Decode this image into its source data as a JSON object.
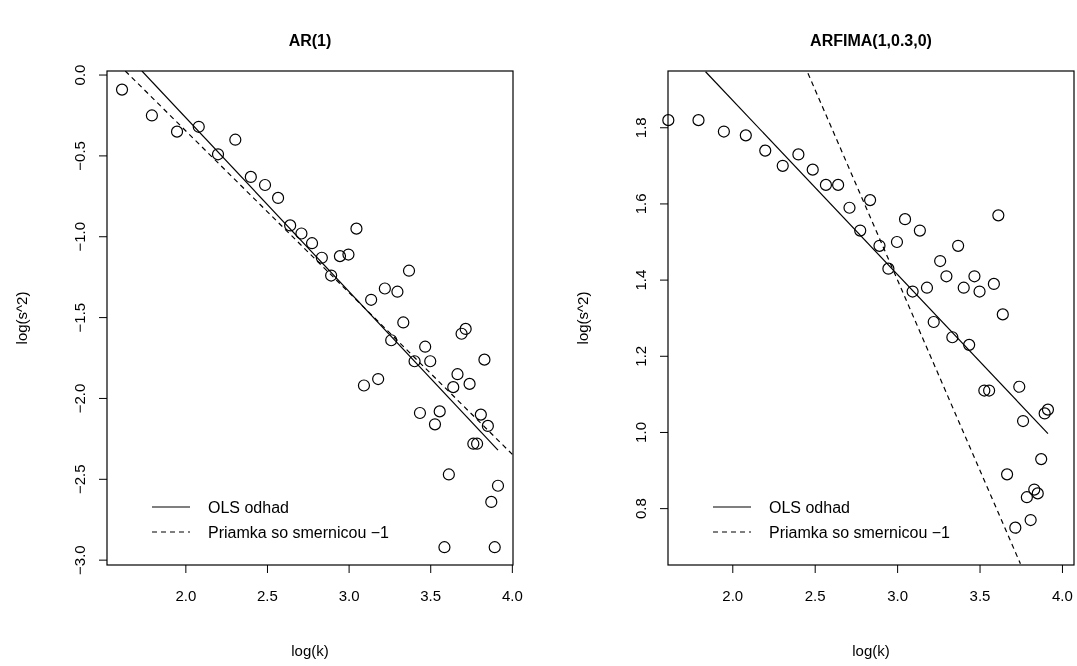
{
  "chart_data": [
    {
      "type": "scatter",
      "title": "AR(1)",
      "xlabel": "log(k)",
      "ylabel": "log(s^2)",
      "xlim": [
        1.517,
        4.004
      ],
      "ylim": [
        -3.03,
        0.025
      ],
      "xticks": [
        {
          "value": 2,
          "label": "2.0"
        },
        {
          "value": 2.5,
          "label": "2.5"
        },
        {
          "value": 3,
          "label": "3.0"
        },
        {
          "value": 3.5,
          "label": "3.5"
        },
        {
          "value": 4,
          "label": "4.0"
        }
      ],
      "yticks": [
        {
          "value": 0,
          "label": "0.0"
        },
        {
          "value": -0.5,
          "label": "−0.5"
        },
        {
          "value": -1,
          "label": "−1.0"
        },
        {
          "value": -1.5,
          "label": "−1.5"
        },
        {
          "value": -2,
          "label": "−2.0"
        },
        {
          "value": -2.5,
          "label": "−2.5"
        },
        {
          "value": -3,
          "label": "−3.0"
        }
      ],
      "legend": "bottom left",
      "marker": "circle",
      "series": [
        {
          "color": "#000000",
          "x": [
            1.609,
            1.792,
            1.946,
            2.079,
            2.197,
            2.303,
            2.398,
            2.485,
            2.565,
            2.639,
            2.708,
            2.773,
            2.833,
            2.89,
            2.944,
            2.996,
            3.045,
            3.091,
            3.135,
            3.178,
            3.219,
            3.258,
            3.296,
            3.332,
            3.367,
            3.401,
            3.434,
            3.466,
            3.497,
            3.526,
            3.555,
            3.584,
            3.611,
            3.638,
            3.664,
            3.689,
            3.714,
            3.738,
            3.761,
            3.784,
            3.807,
            3.829,
            3.85,
            3.871,
            3.892,
            3.912
          ],
          "values": [
            -0.09,
            -0.25,
            -0.35,
            -0.32,
            -0.49,
            -0.4,
            -0.63,
            -0.68,
            -0.76,
            -0.93,
            -0.98,
            -1.04,
            -1.13,
            -1.24,
            -1.12,
            -1.11,
            -0.95,
            -1.92,
            -1.39,
            -1.88,
            -1.32,
            -1.64,
            -1.34,
            -1.53,
            -1.21,
            -1.77,
            -2.09,
            -1.68,
            -1.77,
            -2.16,
            -2.08,
            -2.92,
            -2.47,
            -1.93,
            -1.85,
            -1.6,
            -1.57,
            -1.91,
            -2.28,
            -2.28,
            -2.1,
            -1.76,
            -2.17,
            -2.64,
            -2.92,
            -2.54
          ]
        },
        {
          "type": "line",
          "name": "OLS odhad",
          "color": "#000000",
          "line_style": "solid",
          "marker": "none",
          "x": [
            1.731,
            3.912
          ],
          "values": [
            0.025,
            -2.32
          ]
        },
        {
          "type": "line",
          "name": "Priamka so smernicou −1",
          "color": "#000000",
          "line_style": "dashed",
          "marker": "none",
          "x": [
            1.629,
            4.0
          ],
          "values": [
            0.025,
            -2.346
          ]
        }
      ]
    },
    {
      "type": "scatter",
      "title": "ARFIMA(1,0.3,0)",
      "xlabel": "log(k)",
      "ylabel": "log(s^2)",
      "xlim": [
        1.607,
        4.07
      ],
      "ylim": [
        0.652,
        1.949
      ],
      "xticks": [
        {
          "value": 2,
          "label": "2.0"
        },
        {
          "value": 2.5,
          "label": "2.5"
        },
        {
          "value": 3,
          "label": "3.0"
        },
        {
          "value": 3.5,
          "label": "3.5"
        },
        {
          "value": 4,
          "label": "4.0"
        }
      ],
      "yticks": [
        {
          "value": 0.8,
          "label": "0.8"
        },
        {
          "value": 1,
          "label": "1.0"
        },
        {
          "value": 1.2,
          "label": "1.2"
        },
        {
          "value": 1.4,
          "label": "1.4"
        },
        {
          "value": 1.6,
          "label": "1.6"
        },
        {
          "value": 1.8,
          "label": "1.8"
        }
      ],
      "legend": "bottom left",
      "marker": "circle",
      "series": [
        {
          "color": "#000000",
          "x": [
            1.609,
            1.792,
            1.946,
            2.079,
            2.197,
            2.303,
            2.398,
            2.485,
            2.565,
            2.639,
            2.708,
            2.773,
            2.833,
            2.89,
            2.944,
            2.996,
            3.045,
            3.091,
            3.135,
            3.178,
            3.219,
            3.258,
            3.296,
            3.332,
            3.367,
            3.401,
            3.434,
            3.466,
            3.497,
            3.526,
            3.555,
            3.584,
            3.611,
            3.638,
            3.664,
            3.714,
            3.738,
            3.761,
            3.784,
            3.807,
            3.829,
            3.85,
            3.871,
            3.892,
            3.912
          ],
          "values": [
            1.82,
            1.82,
            1.79,
            1.78,
            1.74,
            1.7,
            1.73,
            1.69,
            1.65,
            1.65,
            1.59,
            1.53,
            1.61,
            1.49,
            1.43,
            1.5,
            1.56,
            1.37,
            1.53,
            1.38,
            1.29,
            1.45,
            1.41,
            1.25,
            1.49,
            1.38,
            1.23,
            1.41,
            1.37,
            1.11,
            1.11,
            1.39,
            1.57,
            1.31,
            0.89,
            0.75,
            1.12,
            1.03,
            0.83,
            0.77,
            0.85,
            0.84,
            0.93,
            1.05,
            1.06
          ]
        },
        {
          "type": "line",
          "name": "OLS odhad",
          "color": "#000000",
          "line_style": "solid",
          "marker": "none",
          "x": [
            1.835,
            3.912
          ],
          "values": [
            1.947,
            0.997
          ]
        },
        {
          "type": "line",
          "name": "Priamka so smernicou −1",
          "color": "#000000",
          "line_style": "dashed",
          "marker": "none",
          "x": [
            2.456,
            3.745
          ],
          "values": [
            1.943,
            0.655
          ]
        }
      ]
    }
  ]
}
